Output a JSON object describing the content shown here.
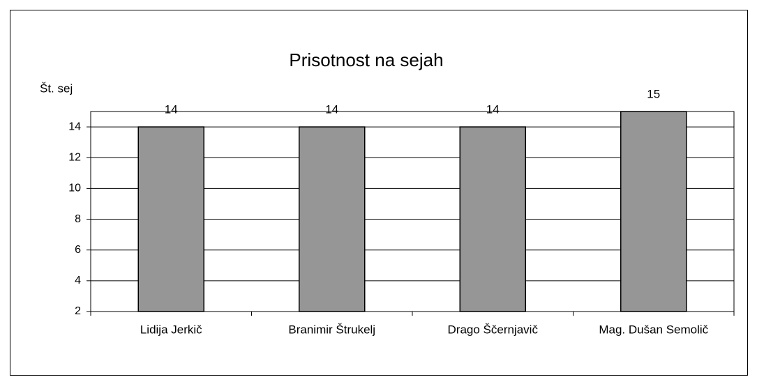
{
  "chart_data": {
    "type": "bar",
    "title": "Prisotnost na sejah",
    "y_label": "Št. sej",
    "categories": [
      "Lidija Jerkič",
      "Branimir Štrukelj",
      "Drago Ščernjavič",
      "Mag. Dušan Semolič"
    ],
    "values": [
      14,
      14,
      14,
      15
    ],
    "color": "#969696",
    "ylim": [
      2,
      15
    ],
    "yticks": [
      2,
      4,
      6,
      8,
      10,
      12,
      14
    ],
    "grid": true
  }
}
